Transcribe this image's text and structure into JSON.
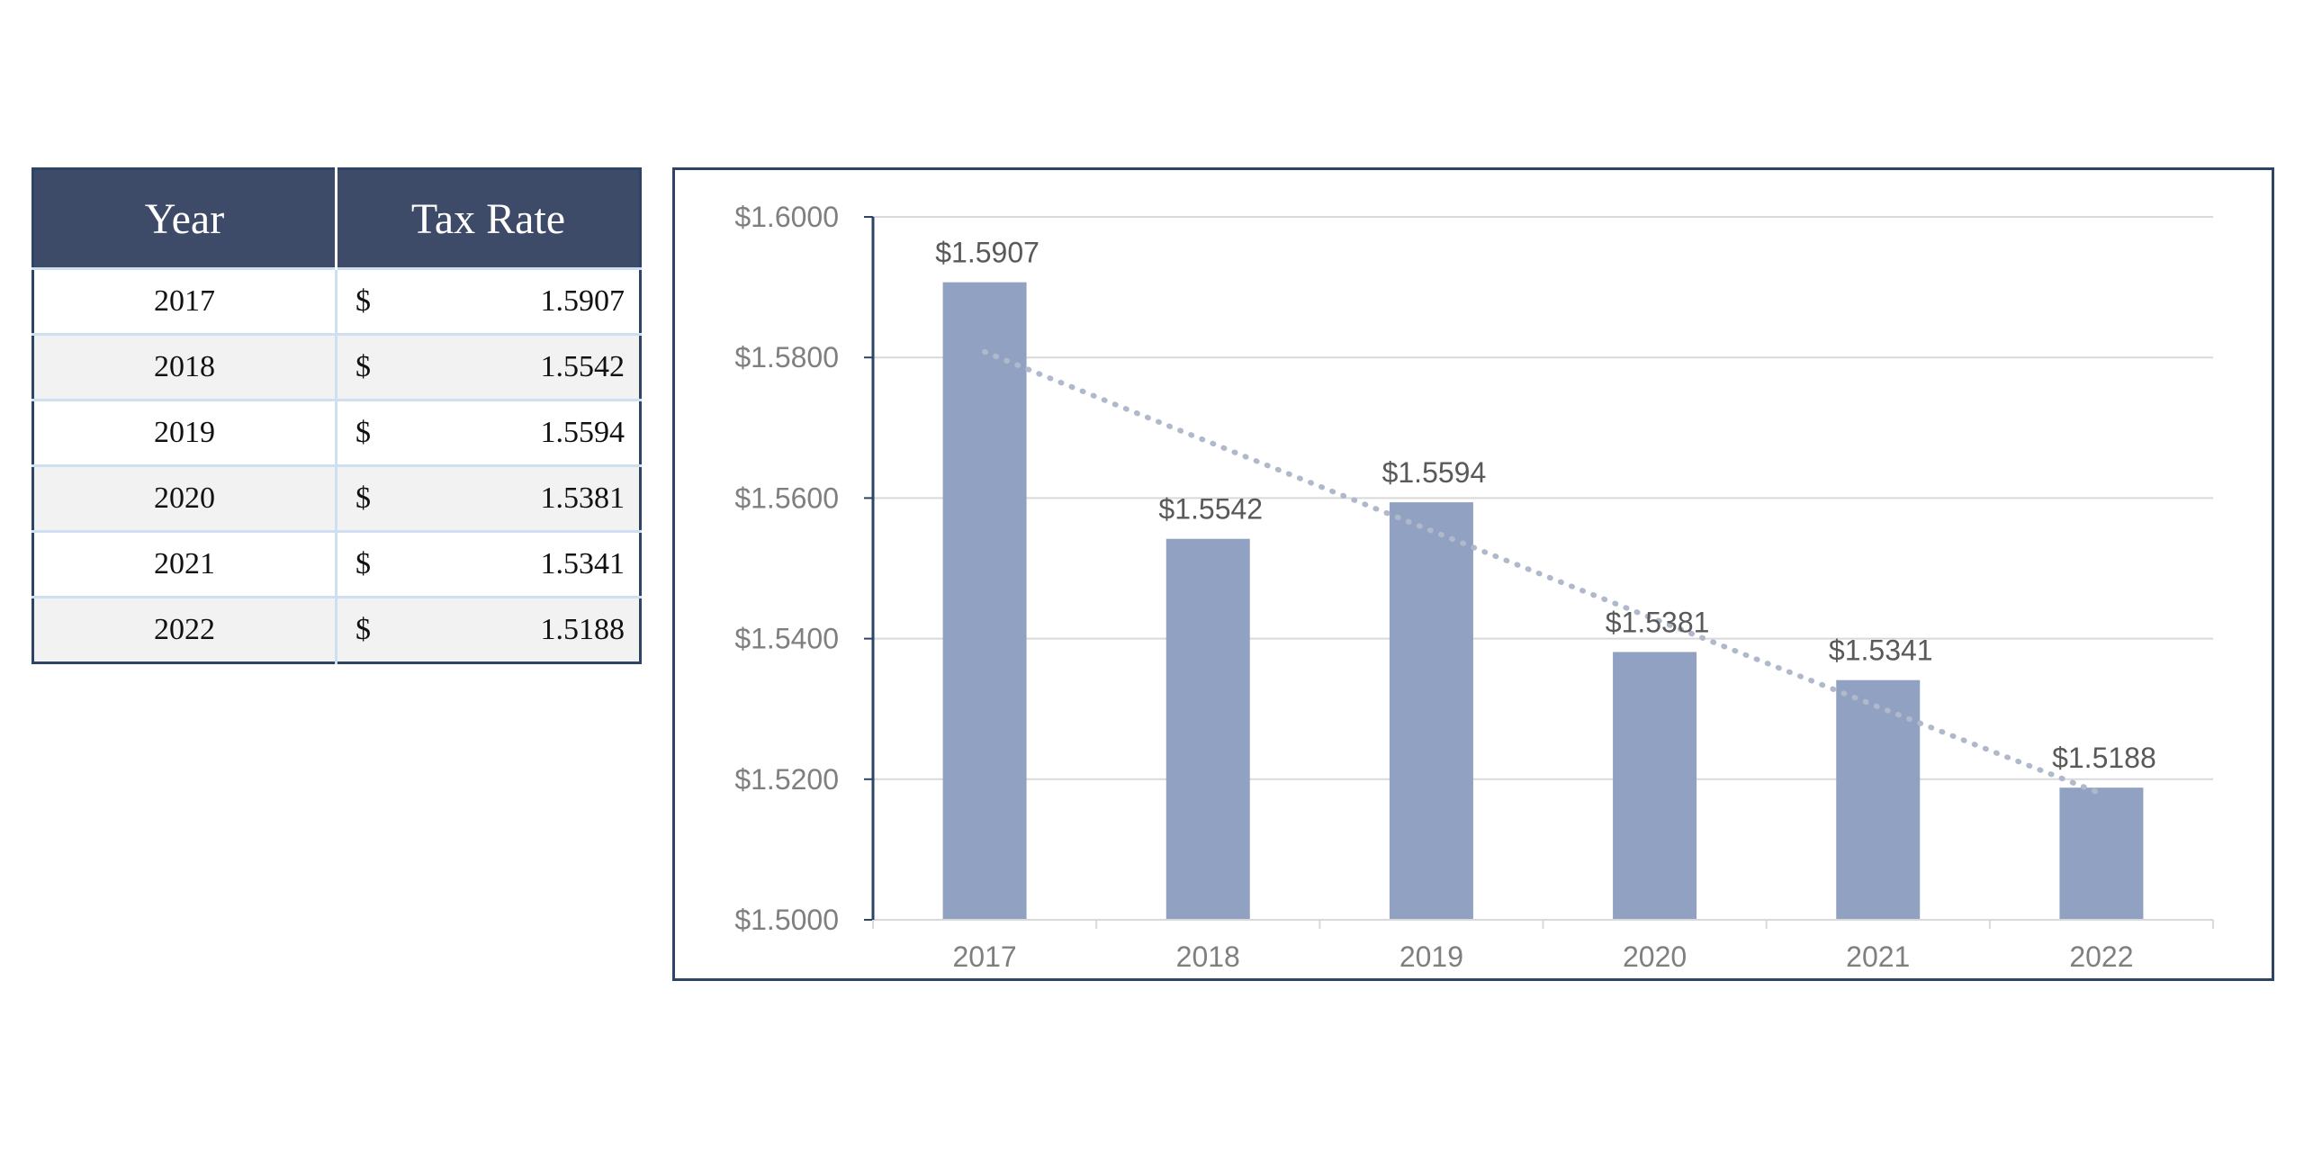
{
  "table": {
    "headers": [
      "Year",
      "Tax Rate"
    ],
    "currency_symbol": "$",
    "rows": [
      {
        "year": "2017",
        "rate": "1.5907"
      },
      {
        "year": "2018",
        "rate": "1.5542"
      },
      {
        "year": "2019",
        "rate": "1.5594"
      },
      {
        "year": "2020",
        "rate": "1.5381"
      },
      {
        "year": "2021",
        "rate": "1.5341"
      },
      {
        "year": "2022",
        "rate": "1.5188"
      }
    ]
  },
  "colors": {
    "header_bg": "#3d4a68",
    "border": "#2e4467",
    "bar": "#91a1c1",
    "trendline": "#b0b8cb",
    "axis": "#2e4467",
    "gridline": "#d9d9d9",
    "label_text": "#595959",
    "tick_text": "#7f7f7f"
  },
  "chart_data": {
    "type": "bar",
    "categories": [
      "2017",
      "2018",
      "2019",
      "2020",
      "2021",
      "2022"
    ],
    "values": [
      1.5907,
      1.5542,
      1.5594,
      1.5381,
      1.5341,
      1.5188
    ],
    "data_labels": [
      "$1.5907",
      "$1.5542",
      "$1.5594",
      "$1.5381",
      "$1.5341",
      "$1.5188"
    ],
    "ylim": [
      1.5,
      1.6
    ],
    "yticks": [
      1.5,
      1.52,
      1.54,
      1.56,
      1.58,
      1.6
    ],
    "ytick_labels": [
      "$1.5000",
      "$1.5200",
      "$1.5400",
      "$1.5600",
      "$1.5800",
      "$1.6000"
    ],
    "title": "",
    "xlabel": "",
    "ylabel": "",
    "grid": true,
    "legend": "none",
    "trendline": "exponential, dotted"
  }
}
